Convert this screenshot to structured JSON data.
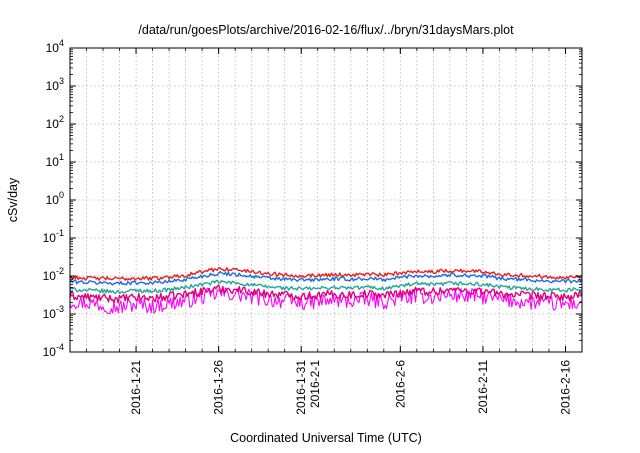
{
  "chart_data": {
    "type": "line",
    "title": "/data/run/goesPlots/archive/2016-02-16/flux/../bryn/31daysMars.plot",
    "xlabel": "Coordinated Universal Time (UTC)",
    "ylabel": "cSv/day",
    "x_start": "2016-01-17",
    "x_end": "2016-02-17",
    "xlim": [
      "2016-01-17",
      "2016-02-17"
    ],
    "yscale": "log",
    "ylim": [
      0.0001,
      10000
    ],
    "grid": true,
    "x_ticks": [
      {
        "date": "2016-01-21",
        "label": "2016-1-21"
      },
      {
        "date": "2016-01-26",
        "label": "2016-1-26"
      },
      {
        "date": "2016-01-31",
        "label": "2016-1-31",
        "label2": "2016-2-1"
      },
      {
        "date": "2016-02-06",
        "label": "2016-2-6"
      },
      {
        "date": "2016-02-11",
        "label": "2016-2-11"
      },
      {
        "date": "2016-02-16",
        "label": "2016-2-16"
      }
    ],
    "y_ticks": [
      {
        "value": 0.0001,
        "base": "10",
        "exp": "-4"
      },
      {
        "value": 0.001,
        "base": "10",
        "exp": "-3"
      },
      {
        "value": 0.01,
        "base": "10",
        "exp": "-2"
      },
      {
        "value": 0.1,
        "base": "10",
        "exp": "-1"
      },
      {
        "value": 1,
        "base": "10",
        "exp": "0"
      },
      {
        "value": 10,
        "base": "10",
        "exp": "1"
      },
      {
        "value": 100,
        "base": "10",
        "exp": "2"
      },
      {
        "value": 1000,
        "base": "10",
        "exp": "3"
      },
      {
        "value": 10000,
        "base": "10",
        "exp": "4"
      }
    ],
    "series": [
      {
        "color": "#ff00ff",
        "x": [
          "2016-01-17",
          "2016-01-18",
          "2016-01-19",
          "2016-01-20",
          "2016-01-21",
          "2016-01-22",
          "2016-01-23",
          "2016-01-24",
          "2016-01-25",
          "2016-01-26",
          "2016-01-27",
          "2016-01-28",
          "2016-01-29",
          "2016-01-30",
          "2016-01-31",
          "2016-02-01",
          "2016-02-02",
          "2016-02-03",
          "2016-02-04",
          "2016-02-05",
          "2016-02-06",
          "2016-02-07",
          "2016-02-08",
          "2016-02-09",
          "2016-02-10",
          "2016-02-11",
          "2016-02-12",
          "2016-02-13",
          "2016-02-14",
          "2016-02-15",
          "2016-02-16",
          "2016-02-17"
        ],
        "y": [
          0.0022,
          0.002,
          0.0017,
          0.0015,
          0.0018,
          0.0016,
          0.0019,
          0.0022,
          0.0028,
          0.0035,
          0.0033,
          0.0028,
          0.0024,
          0.0022,
          0.002,
          0.0021,
          0.0023,
          0.0022,
          0.0024,
          0.0021,
          0.0026,
          0.003,
          0.0028,
          0.0032,
          0.003,
          0.0029,
          0.0024,
          0.0022,
          0.002,
          0.0019,
          0.0018,
          0.002
        ]
      },
      {
        "color": "#e0007a",
        "x": [
          "2016-01-17",
          "2016-01-18",
          "2016-01-19",
          "2016-01-20",
          "2016-01-21",
          "2016-01-22",
          "2016-01-23",
          "2016-01-24",
          "2016-01-25",
          "2016-01-26",
          "2016-01-27",
          "2016-01-28",
          "2016-01-29",
          "2016-01-30",
          "2016-01-31",
          "2016-02-01",
          "2016-02-02",
          "2016-02-03",
          "2016-02-04",
          "2016-02-05",
          "2016-02-06",
          "2016-02-07",
          "2016-02-08",
          "2016-02-09",
          "2016-02-10",
          "2016-02-11",
          "2016-02-12",
          "2016-02-13",
          "2016-02-14",
          "2016-02-15",
          "2016-02-16",
          "2016-02-17"
        ],
        "y": [
          0.003,
          0.0028,
          0.0026,
          0.0025,
          0.0027,
          0.0026,
          0.0029,
          0.0033,
          0.004,
          0.0046,
          0.0044,
          0.0039,
          0.0034,
          0.0032,
          0.003,
          0.0031,
          0.0033,
          0.0032,
          0.0034,
          0.0031,
          0.0036,
          0.0041,
          0.0039,
          0.0043,
          0.0041,
          0.004,
          0.0034,
          0.0032,
          0.003,
          0.0029,
          0.0028,
          0.003
        ]
      },
      {
        "color": "#22a89a",
        "x": [
          "2016-01-17",
          "2016-01-18",
          "2016-01-19",
          "2016-01-20",
          "2016-01-21",
          "2016-01-22",
          "2016-01-23",
          "2016-01-24",
          "2016-01-25",
          "2016-01-26",
          "2016-01-27",
          "2016-01-28",
          "2016-01-29",
          "2016-01-30",
          "2016-01-31",
          "2016-02-01",
          "2016-02-02",
          "2016-02-03",
          "2016-02-04",
          "2016-02-05",
          "2016-02-06",
          "2016-02-07",
          "2016-02-08",
          "2016-02-09",
          "2016-02-10",
          "2016-02-11",
          "2016-02-12",
          "2016-02-13",
          "2016-02-14",
          "2016-02-15",
          "2016-02-16",
          "2016-02-17"
        ],
        "y": [
          0.0045,
          0.0042,
          0.004,
          0.0038,
          0.0042,
          0.004,
          0.0044,
          0.005,
          0.006,
          0.007,
          0.0066,
          0.0058,
          0.0052,
          0.0048,
          0.0046,
          0.0047,
          0.005,
          0.0048,
          0.0051,
          0.0047,
          0.0055,
          0.0062,
          0.0058,
          0.0064,
          0.0062,
          0.006,
          0.0052,
          0.0048,
          0.0046,
          0.0044,
          0.0042,
          0.0045
        ]
      },
      {
        "color": "#1a6fe0",
        "x": [
          "2016-01-17",
          "2016-01-18",
          "2016-01-19",
          "2016-01-20",
          "2016-01-21",
          "2016-01-22",
          "2016-01-23",
          "2016-01-24",
          "2016-01-25",
          "2016-01-26",
          "2016-01-27",
          "2016-01-28",
          "2016-01-29",
          "2016-01-30",
          "2016-01-31",
          "2016-02-01",
          "2016-02-02",
          "2016-02-03",
          "2016-02-04",
          "2016-02-05",
          "2016-02-06",
          "2016-02-07",
          "2016-02-08",
          "2016-02-09",
          "2016-02-10",
          "2016-02-11",
          "2016-02-12",
          "2016-02-13",
          "2016-02-14",
          "2016-02-15",
          "2016-02-16",
          "2016-02-17"
        ],
        "y": [
          0.0072,
          0.0068,
          0.0066,
          0.0064,
          0.0068,
          0.0066,
          0.0072,
          0.0082,
          0.0098,
          0.0118,
          0.0112,
          0.0098,
          0.0088,
          0.0082,
          0.0078,
          0.008,
          0.0084,
          0.0082,
          0.0086,
          0.008,
          0.0092,
          0.0104,
          0.0098,
          0.0108,
          0.0104,
          0.01,
          0.0088,
          0.0082,
          0.0078,
          0.0074,
          0.0072,
          0.0076
        ]
      },
      {
        "color": "#e82020",
        "x": [
          "2016-01-17",
          "2016-01-18",
          "2016-01-19",
          "2016-01-20",
          "2016-01-21",
          "2016-01-22",
          "2016-01-23",
          "2016-01-24",
          "2016-01-25",
          "2016-01-26",
          "2016-01-27",
          "2016-01-28",
          "2016-01-29",
          "2016-01-30",
          "2016-01-31",
          "2016-02-01",
          "2016-02-02",
          "2016-02-03",
          "2016-02-04",
          "2016-02-05",
          "2016-02-06",
          "2016-02-07",
          "2016-02-08",
          "2016-02-09",
          "2016-02-10",
          "2016-02-11",
          "2016-02-12",
          "2016-02-13",
          "2016-02-14",
          "2016-02-15",
          "2016-02-16",
          "2016-02-17"
        ],
        "y": [
          0.0092,
          0.0088,
          0.0086,
          0.0084,
          0.0088,
          0.0086,
          0.0094,
          0.0106,
          0.0128,
          0.0155,
          0.0148,
          0.013,
          0.0116,
          0.0108,
          0.0102,
          0.0104,
          0.011,
          0.0106,
          0.0112,
          0.0104,
          0.012,
          0.0136,
          0.0128,
          0.014,
          0.0136,
          0.013,
          0.0114,
          0.0106,
          0.01,
          0.0096,
          0.0094,
          0.0098
        ]
      }
    ]
  }
}
